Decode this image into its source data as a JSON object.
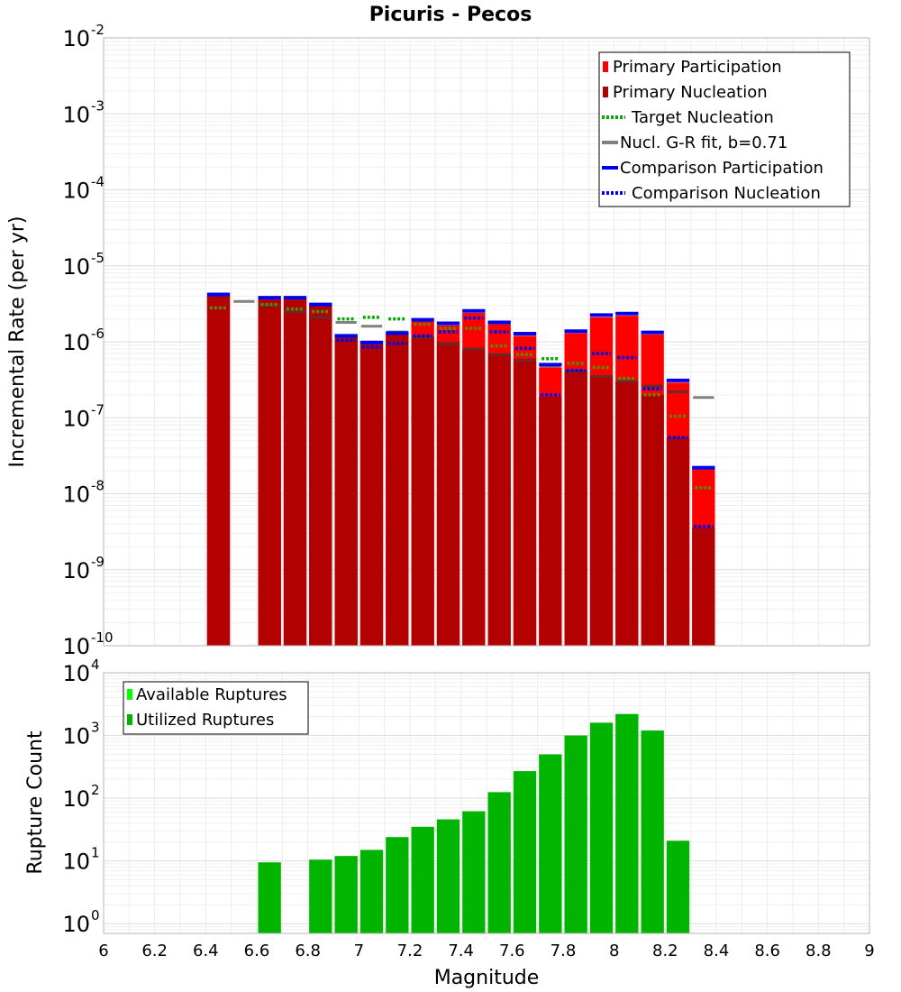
{
  "chart_data": [
    {
      "type": "bar",
      "title": "Picuris - Pecos",
      "xlabel": "",
      "ylabel": "Incremental Rate (per yr)",
      "xlim": [
        6,
        9
      ],
      "ylim": [
        1e-10,
        0.01
      ],
      "yscale": "log",
      "grid": true,
      "legend_position": "top-right",
      "y_ticks": [
        {
          "base": "10",
          "exp": "-10",
          "value": 1e-10
        },
        {
          "base": "10",
          "exp": "-9",
          "value": 1e-09
        },
        {
          "base": "10",
          "exp": "-8",
          "value": 1e-08
        },
        {
          "base": "10",
          "exp": "-7",
          "value": 1e-07
        },
        {
          "base": "10",
          "exp": "-6",
          "value": 1e-06
        },
        {
          "base": "10",
          "exp": "-5",
          "value": 1e-05
        },
        {
          "base": "10",
          "exp": "-4",
          "value": 0.0001
        },
        {
          "base": "10",
          "exp": "-3",
          "value": 0.001
        },
        {
          "base": "10",
          "exp": "-2",
          "value": 0.01
        }
      ],
      "legend": [
        {
          "label": "Primary Participation",
          "color": "#ff0000",
          "style": "bar"
        },
        {
          "label": "Primary Nucleation",
          "color": "#b30000",
          "style": "bar"
        },
        {
          "label": "Target Nucleation",
          "color": "#00aa00",
          "style": "dotted"
        },
        {
          "label": "Nucl. G-R fit, b=0.71",
          "color": "#808080",
          "style": "solid"
        },
        {
          "label": "Comparison Participation",
          "color": "#0000ee",
          "style": "solid"
        },
        {
          "label": "Comparison Nucleation",
          "color": "#0000ee",
          "style": "dotted"
        }
      ],
      "colors": {
        "participation": "#ff0000",
        "nucleation": "#b30000",
        "target": "#00aa00",
        "gr": "#808080",
        "comparison": "#0000ee"
      },
      "bins": [
        {
          "m": 6.45,
          "participation": 4e-06,
          "nucleation": 4e-06,
          "target": 2.8e-06,
          "gr": null,
          "comp_part": 4.2e-06,
          "comp_nucl": null
        },
        {
          "m": 6.55,
          "participation": null,
          "nucleation": null,
          "target": null,
          "gr": 3.4e-06,
          "comp_part": null,
          "comp_nucl": null
        },
        {
          "m": 6.65,
          "participation": 3.6e-06,
          "nucleation": 3.6e-06,
          "target": 3.1e-06,
          "gr": 3e-06,
          "comp_part": 3.8e-06,
          "comp_nucl": null
        },
        {
          "m": 6.75,
          "participation": 3.6e-06,
          "nucleation": 3.6e-06,
          "target": 2.7e-06,
          "gr": 2.5e-06,
          "comp_part": 3.8e-06,
          "comp_nucl": null
        },
        {
          "m": 6.85,
          "participation": 3e-06,
          "nucleation": 3e-06,
          "target": 2.5e-06,
          "gr": 2.1e-06,
          "comp_part": 3.1e-06,
          "comp_nucl": null
        },
        {
          "m": 6.95,
          "participation": 1.15e-06,
          "nucleation": 1.15e-06,
          "target": 2e-06,
          "gr": 1.8e-06,
          "comp_part": 1.2e-06,
          "comp_nucl": 1.05e-06
        },
        {
          "m": 7.05,
          "participation": 9.3e-07,
          "nucleation": 9.3e-07,
          "target": 2.1e-06,
          "gr": 1.6e-06,
          "comp_part": 9.8e-07,
          "comp_nucl": 8.5e-07
        },
        {
          "m": 7.15,
          "participation": 1.25e-06,
          "nucleation": 1.25e-06,
          "target": 2e-06,
          "gr": 1.35e-06,
          "comp_part": 1.3e-06,
          "comp_nucl": 9.5e-07
        },
        {
          "m": 7.25,
          "participation": 1.85e-06,
          "nucleation": 1.15e-06,
          "target": 1.7e-06,
          "gr": 1.15e-06,
          "comp_part": 1.95e-06,
          "comp_nucl": 1.2e-06
        },
        {
          "m": 7.35,
          "participation": 1.65e-06,
          "nucleation": 1e-06,
          "target": 1.5e-06,
          "gr": 9.5e-07,
          "comp_part": 1.75e-06,
          "comp_nucl": 1.35e-06
        },
        {
          "m": 7.45,
          "participation": 2.4e-06,
          "nucleation": 8e-07,
          "target": 1.5e-06,
          "gr": 8e-07,
          "comp_part": 2.55e-06,
          "comp_nucl": 2.05e-06
        },
        {
          "m": 7.55,
          "participation": 1.7e-06,
          "nucleation": 7e-07,
          "target": 8.8e-07,
          "gr": 6.8e-07,
          "comp_part": 1.8e-06,
          "comp_nucl": 1.35e-06
        },
        {
          "m": 7.65,
          "participation": 1.2e-06,
          "nucleation": 6e-07,
          "target": 6.8e-07,
          "gr": 5.7e-07,
          "comp_part": 1.28e-06,
          "comp_nucl": 8.2e-07
        },
        {
          "m": 7.75,
          "participation": 4.6e-07,
          "nucleation": 1.9e-07,
          "target": 6e-07,
          "gr": 4.8e-07,
          "comp_part": 5e-07,
          "comp_nucl": 2e-07
        },
        {
          "m": 7.85,
          "participation": 1.3e-06,
          "nucleation": 4.2e-07,
          "target": 5.2e-07,
          "gr": 4.1e-07,
          "comp_part": 1.38e-06,
          "comp_nucl": 4.2e-07
        },
        {
          "m": 7.95,
          "participation": 2.1e-06,
          "nucleation": 3.6e-07,
          "target": 4.6e-07,
          "gr": 3.5e-07,
          "comp_part": 2.25e-06,
          "comp_nucl": 7e-07
        },
        {
          "m": 8.05,
          "participation": 2.2e-06,
          "nucleation": 3e-07,
          "target": 3.3e-07,
          "gr": 3e-07,
          "comp_part": 2.35e-06,
          "comp_nucl": 6.2e-07
        },
        {
          "m": 8.15,
          "participation": 1.25e-06,
          "nucleation": 2e-07,
          "target": 2e-07,
          "gr": 2.6e-07,
          "comp_part": 1.33e-06,
          "comp_nucl": 2.4e-07
        },
        {
          "m": 8.25,
          "participation": 2.9e-07,
          "nucleation": 5.5e-08,
          "target": 1.05e-07,
          "gr": 2.2e-07,
          "comp_part": 3.1e-07,
          "comp_nucl": 5.5e-08
        },
        {
          "m": 8.35,
          "participation": 2.1e-08,
          "nucleation": 3.6e-09,
          "target": 1.2e-08,
          "gr": 1.85e-07,
          "comp_part": 2.2e-08,
          "comp_nucl": 3.7e-09
        }
      ]
    },
    {
      "type": "bar",
      "title": "",
      "xlabel": "Magnitude",
      "ylabel": "Rupture Count",
      "xlim": [
        6,
        9
      ],
      "ylim": [
        0.7,
        10000
      ],
      "yscale": "log",
      "grid": true,
      "legend_position": "top-left",
      "x_ticks": [
        "6",
        "6.2",
        "6.4",
        "6.6",
        "6.8",
        "7",
        "7.2",
        "7.4",
        "7.6",
        "7.8",
        "8",
        "8.2",
        "8.4",
        "8.6",
        "8.8",
        "9"
      ],
      "y_ticks": [
        {
          "base": "10",
          "exp": "0",
          "value": 1
        },
        {
          "base": "10",
          "exp": "1",
          "value": 10
        },
        {
          "base": "10",
          "exp": "2",
          "value": 100
        },
        {
          "base": "10",
          "exp": "3",
          "value": 1000
        },
        {
          "base": "10",
          "exp": "4",
          "value": 10000
        }
      ],
      "legend": [
        {
          "label": "Available Ruptures",
          "color": "#00ff00",
          "style": "bar"
        },
        {
          "label": "Utilized Ruptures",
          "color": "#00b400",
          "style": "bar"
        }
      ],
      "colors": {
        "available": "#00ff00",
        "utilized": "#00b400"
      },
      "bins": [
        {
          "m": 6.65,
          "count": 9.5
        },
        {
          "m": 6.85,
          "count": 10.5
        },
        {
          "m": 6.95,
          "count": 12
        },
        {
          "m": 7.05,
          "count": 15
        },
        {
          "m": 7.15,
          "count": 24
        },
        {
          "m": 7.25,
          "count": 35
        },
        {
          "m": 7.35,
          "count": 46
        },
        {
          "m": 7.45,
          "count": 62
        },
        {
          "m": 7.55,
          "count": 125
        },
        {
          "m": 7.65,
          "count": 270
        },
        {
          "m": 7.75,
          "count": 500
        },
        {
          "m": 7.85,
          "count": 1000
        },
        {
          "m": 7.95,
          "count": 1600
        },
        {
          "m": 8.05,
          "count": 2200
        },
        {
          "m": 8.15,
          "count": 1200
        },
        {
          "m": 8.25,
          "count": 21
        }
      ]
    }
  ]
}
